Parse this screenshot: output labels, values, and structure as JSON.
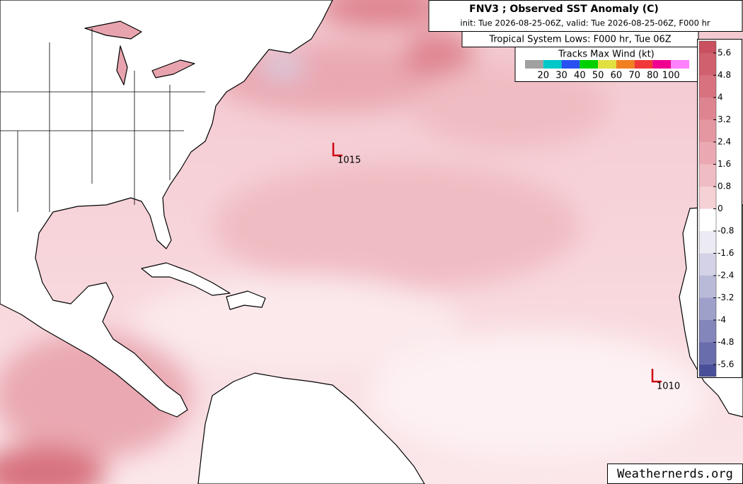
{
  "header": {
    "title": "FNV3 ; Observed SST Anomaly (C)",
    "subtitle": "init: Tue 2026-08-25-06Z, valid: Tue 2026-08-25-06Z, F000 hr"
  },
  "tracks_legend": {
    "title": "Tropical System Lows: F000 hr, Tue 06Z",
    "wind_title": "Tracks Max Wind (kt)",
    "wind_ticks": [
      20,
      30,
      40,
      50,
      60,
      70,
      80,
      100
    ],
    "wind_colors": [
      "#a0a0a0",
      "#00c8c8",
      "#2850f0",
      "#00d000",
      "#e0e040",
      "#f08020",
      "#f03838",
      "#f00090",
      "#ff80ff"
    ]
  },
  "colorbar": {
    "ticks": [
      5.6,
      4.8,
      4,
      3.2,
      2.4,
      1.6,
      0.8,
      0,
      -0.8,
      -1.6,
      -2.4,
      -3.2,
      -4,
      -4.8,
      -5.6
    ],
    "colors": [
      "#c8505f",
      "#d0606e",
      "#d8727f",
      "#de8490",
      "#e497a1",
      "#eaa9b2",
      "#f0bcc3",
      "#f5d0d5",
      "#fae5e8",
      "#ffffff",
      "#eceaf2",
      "#d3d2e6",
      "#b9b9d8",
      "#9fa0ca",
      "#8386bb",
      "#6a6dac",
      "#4a4f9a"
    ]
  },
  "lows": [
    {
      "symbol": "L",
      "pressure": 1015
    },
    {
      "symbol": "L",
      "pressure": 1010
    }
  ],
  "footer": {
    "credit": "Weathernerds.org"
  }
}
